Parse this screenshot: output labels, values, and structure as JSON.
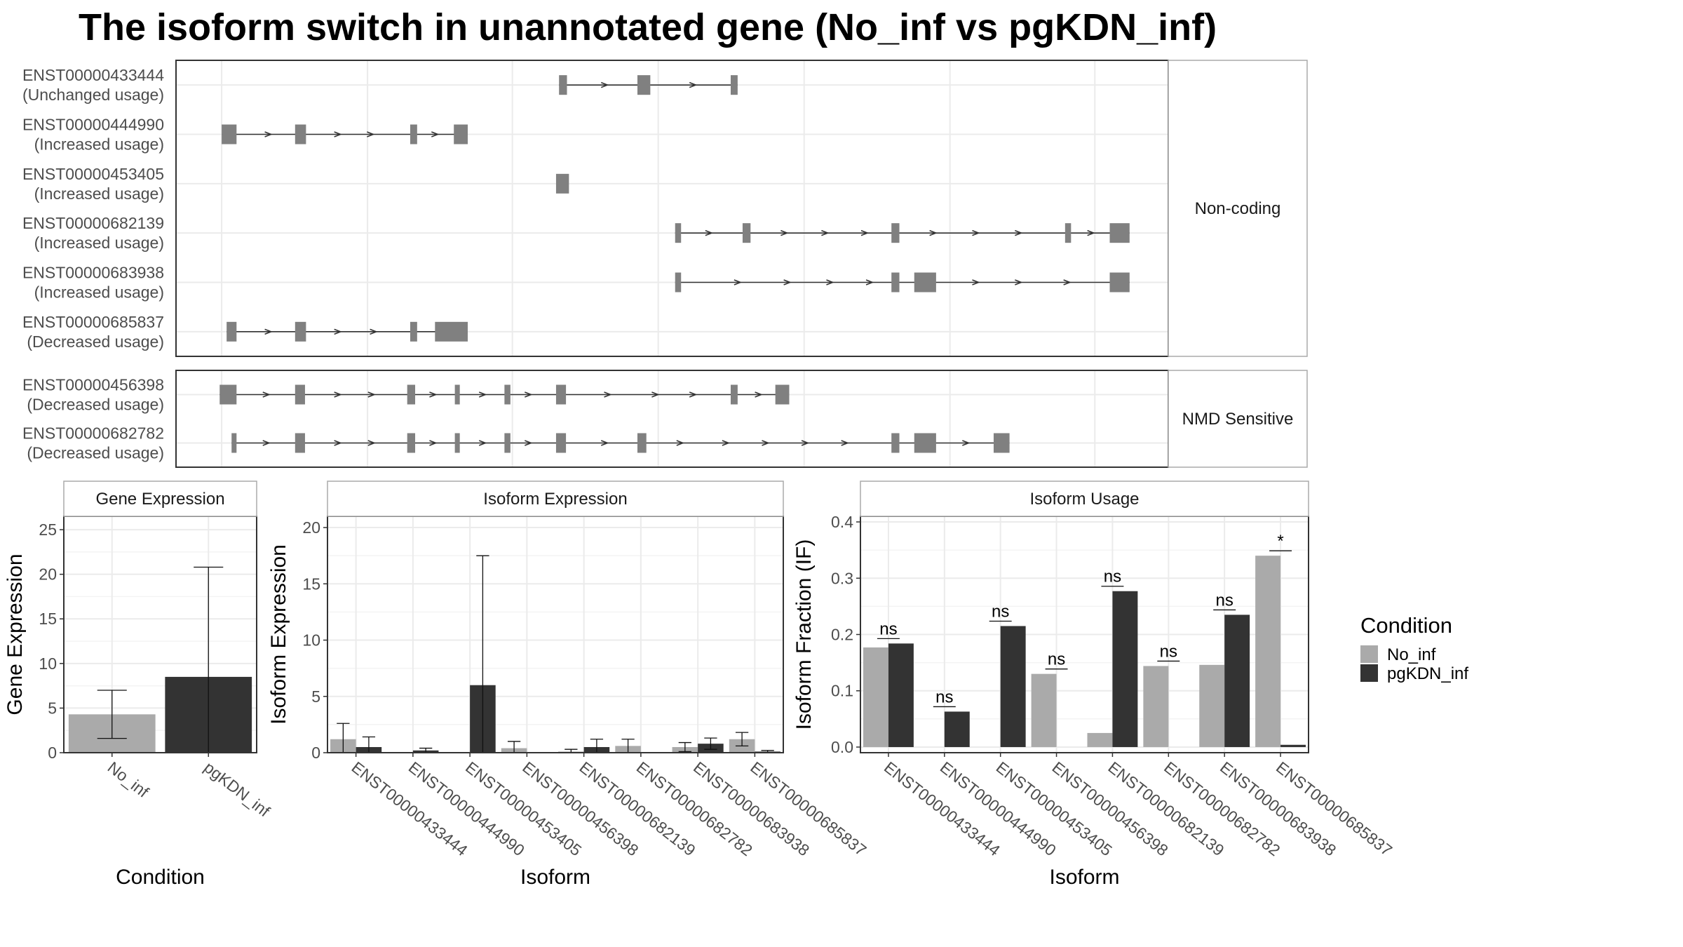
{
  "title": "The isoform switch in unannotated gene (No_inf vs pgKDN_inf)",
  "colors": {
    "No_inf": "#aaaaaa",
    "pgKDN_inf": "#333333",
    "exon": "#808080",
    "intron": "#333333",
    "frame": "#333333",
    "strip": "#aaaaaa",
    "grid": "#ebebeb"
  },
  "structure": {
    "groups": [
      {
        "label": "Non-coding",
        "isoforms": [
          {
            "id": "ENST00000433444",
            "usage": "(Unchanged usage)",
            "exons": [
              [
                0.386,
                0.394
              ],
              [
                0.465,
                0.478
              ],
              [
                0.559,
                0.566
              ]
            ],
            "arrows": [
              0.432,
              0.521
            ]
          },
          {
            "id": "ENST00000444990",
            "usage": "(Increased usage)",
            "exons": [
              [
                0.046,
                0.061
              ],
              [
                0.12,
                0.131
              ],
              [
                0.236,
                0.243
              ],
              [
                0.28,
                0.294
              ]
            ],
            "arrows": [
              0.093,
              0.163,
              0.196,
              0.261
            ]
          },
          {
            "id": "ENST00000453405",
            "usage": "(Increased usage)",
            "exons": [
              [
                0.383,
                0.396
              ]
            ],
            "arrows": []
          },
          {
            "id": "ENST00000682139",
            "usage": "(Increased usage)",
            "exons": [
              [
                0.503,
                0.509
              ],
              [
                0.571,
                0.579
              ],
              [
                0.721,
                0.729
              ],
              [
                0.896,
                0.902
              ],
              [
                0.941,
                0.961
              ]
            ],
            "arrows": [
              0.537,
              0.613,
              0.654,
              0.694,
              0.763,
              0.806,
              0.849,
              0.922
            ]
          },
          {
            "id": "ENST00000683938",
            "usage": "(Increased usage)",
            "exons": [
              [
                0.503,
                0.509
              ],
              [
                0.721,
                0.729
              ],
              [
                0.744,
                0.766
              ],
              [
                0.941,
                0.961
              ]
            ],
            "arrows": [
              0.566,
              0.616,
              0.659,
              0.699,
              0.806,
              0.849,
              0.898
            ]
          },
          {
            "id": "ENST00000685837",
            "usage": "(Decreased usage)",
            "exons": [
              [
                0.051,
                0.061
              ],
              [
                0.12,
                0.131
              ],
              [
                0.236,
                0.243
              ],
              [
                0.261,
                0.294
              ]
            ],
            "arrows": [
              0.093,
              0.163,
              0.199
            ]
          }
        ]
      },
      {
        "label": "NMD Sensitive",
        "isoforms": [
          {
            "id": "ENST00000456398",
            "usage": "(Decreased usage)",
            "exons": [
              [
                0.044,
                0.061
              ],
              [
                0.12,
                0.13
              ],
              [
                0.233,
                0.241
              ],
              [
                0.281,
                0.286
              ],
              [
                0.331,
                0.337
              ],
              [
                0.383,
                0.393
              ],
              [
                0.559,
                0.566
              ],
              [
                0.604,
                0.618
              ]
            ],
            "arrows": [
              0.091,
              0.163,
              0.197,
              0.259,
              0.309,
              0.355,
              0.435,
              0.483,
              0.521,
              0.587
            ]
          },
          {
            "id": "ENST00000682782",
            "usage": "(Decreased usage)",
            "exons": [
              [
                0.056,
                0.061
              ],
              [
                0.12,
                0.13
              ],
              [
                0.233,
                0.241
              ],
              [
                0.281,
                0.286
              ],
              [
                0.331,
                0.337
              ],
              [
                0.383,
                0.393
              ],
              [
                0.465,
                0.474
              ],
              [
                0.721,
                0.729
              ],
              [
                0.744,
                0.766
              ],
              [
                0.824,
                0.84
              ]
            ],
            "arrows": [
              0.091,
              0.163,
              0.197,
              0.259,
              0.309,
              0.355,
              0.432,
              0.508,
              0.554,
              0.594,
              0.634,
              0.674,
              0.796
            ]
          }
        ]
      }
    ]
  },
  "chart_data": [
    {
      "type": "bar",
      "panel": "Gene Expression",
      "categories": [
        "No_inf",
        "pgKDN_inf"
      ],
      "values": [
        4.3,
        8.5
      ],
      "error_low": [
        1.6,
        0.0
      ],
      "error_high": [
        7.0,
        20.8
      ],
      "xlabel": "Condition",
      "ylabel": "Gene Expression",
      "ylim": [
        0,
        26.5
      ],
      "yticks": [
        0,
        5,
        10,
        15,
        20,
        25
      ],
      "grid": true
    },
    {
      "type": "bar",
      "panel": "Isoform Expression",
      "categories": [
        "ENST00000433444",
        "ENST00000444990",
        "ENST00000453405",
        "ENST00000456398",
        "ENST00000682139",
        "ENST00000682782",
        "ENST00000683938",
        "ENST00000685837"
      ],
      "series": [
        {
          "name": "No_inf",
          "values": [
            1.2,
            0.0,
            0.0,
            0.4,
            0.1,
            0.6,
            0.5,
            1.2
          ],
          "error_low": [
            0.0,
            0.0,
            0.0,
            0.0,
            0.0,
            0.0,
            0.1,
            0.6
          ],
          "error_high": [
            2.6,
            0.0,
            0.0,
            1.0,
            0.3,
            1.2,
            0.9,
            1.8
          ]
        },
        {
          "name": "pgKDN_inf",
          "values": [
            0.5,
            0.2,
            6.0,
            0.0,
            0.5,
            0.0,
            0.8,
            0.1
          ],
          "error_low": [
            0.0,
            0.0,
            0.0,
            0.0,
            0.0,
            0.0,
            0.3,
            0.0
          ],
          "error_high": [
            1.4,
            0.4,
            17.5,
            0.0,
            1.2,
            0.0,
            1.3,
            0.2
          ]
        }
      ],
      "xlabel": "Isoform",
      "ylabel": "Isoform Expression",
      "ylim": [
        0,
        21
      ],
      "yticks": [
        0,
        5,
        10,
        15,
        20
      ],
      "grid": true
    },
    {
      "type": "bar",
      "panel": "Isoform Usage",
      "categories": [
        "ENST00000433444",
        "ENST00000444990",
        "ENST00000453405",
        "ENST00000456398",
        "ENST00000682139",
        "ENST00000682782",
        "ENST00000683938",
        "ENST00000685837"
      ],
      "series": [
        {
          "name": "No_inf",
          "values": [
            0.177,
            0.0,
            0.0,
            0.13,
            0.025,
            0.144,
            0.146,
            0.34
          ]
        },
        {
          "name": "pgKDN_inf",
          "values": [
            0.184,
            0.063,
            0.215,
            0.0,
            0.277,
            0.0,
            0.235,
            0.004
          ]
        }
      ],
      "significance": [
        "ns",
        "ns",
        "ns",
        "ns",
        "ns",
        "ns",
        "ns",
        "*"
      ],
      "xlabel": "Isoform",
      "ylabel": "Isoform Fraction (IF)",
      "ylim": [
        -0.01,
        0.41
      ],
      "yticks": [
        0.0,
        0.1,
        0.2,
        0.3,
        0.4
      ],
      "grid": true
    }
  ],
  "legend": {
    "title": "Condition",
    "entries": [
      "No_inf",
      "pgKDN_inf"
    ],
    "placement": "right"
  }
}
